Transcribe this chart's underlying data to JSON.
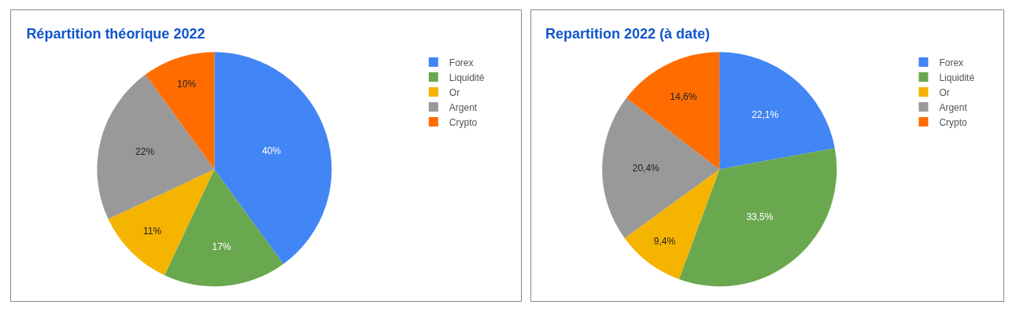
{
  "chart_data": [
    {
      "type": "pie",
      "title": "Répartition théorique 2022",
      "categories": [
        "Forex",
        "Liquidité",
        "Or",
        "Argent",
        "Crypto"
      ],
      "values": [
        40,
        17,
        11,
        22,
        10
      ],
      "colors": [
        "#4285f4",
        "#6aa84f",
        "#f4b400",
        "#999999",
        "#ff6d01"
      ],
      "value_labels": [
        "40%",
        "17%",
        "11%",
        "22%",
        "10%"
      ],
      "legend": "top right"
    },
    {
      "type": "pie",
      "title": "Repartition 2022 (à date)",
      "categories": [
        "Forex",
        "Liquidité",
        "Or",
        "Argent",
        "Crypto"
      ],
      "values": [
        22.1,
        33.5,
        9.4,
        20.4,
        14.6
      ],
      "colors": [
        "#4285f4",
        "#6aa84f",
        "#f4b400",
        "#999999",
        "#ff6d01"
      ],
      "value_labels": [
        "22,1%",
        "33,5%",
        "9,4%",
        "20,4%",
        "14,6%"
      ],
      "legend": "top right"
    }
  ]
}
